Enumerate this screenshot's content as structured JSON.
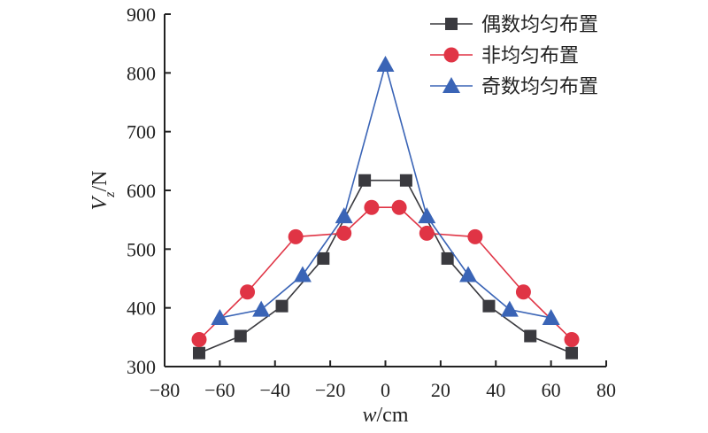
{
  "chart_data": {
    "type": "line",
    "xlabel": {
      "var": "w",
      "unit": "/cm"
    },
    "ylabel": {
      "var": "V",
      "sub": "z",
      "unit": "/N"
    },
    "xlim": [
      -80,
      80
    ],
    "ylim": [
      300,
      900
    ],
    "xticks": [
      -80,
      -60,
      -40,
      -20,
      0,
      20,
      40,
      60,
      80
    ],
    "yticks": [
      300,
      400,
      500,
      600,
      700,
      800,
      900
    ],
    "xtick_labels": [
      "−80",
      "−60",
      "−40",
      "−20",
      "0",
      "20",
      "40",
      "60",
      "80"
    ],
    "ytick_labels": [
      "300",
      "400",
      "500",
      "600",
      "700",
      "800",
      "900"
    ],
    "grid": false,
    "legend_position": "top-right",
    "series": [
      {
        "name": "偶数均匀布置",
        "marker": "square",
        "color": "#3a3a3f",
        "x": [
          -67.5,
          -52.5,
          -37.5,
          -22.5,
          -7.5,
          7.5,
          22.5,
          37.5,
          52.5,
          67.5
        ],
        "y": [
          323,
          352,
          403,
          484,
          617,
          617,
          484,
          403,
          352,
          323
        ]
      },
      {
        "name": "非均匀布置",
        "marker": "circle",
        "color": "#e03445",
        "x": [
          -67.5,
          -50,
          -32.5,
          -15,
          -5,
          5,
          15,
          32.5,
          50,
          67.5
        ],
        "y": [
          346,
          427,
          521,
          527,
          571,
          571,
          527,
          521,
          427,
          346
        ]
      },
      {
        "name": "奇数均匀布置",
        "marker": "triangle",
        "color": "#3a64b6",
        "x": [
          -60,
          -45,
          -30,
          -15,
          0,
          15,
          30,
          45,
          60
        ],
        "y": [
          383,
          397,
          456,
          556,
          814,
          556,
          456,
          397,
          383
        ]
      }
    ]
  }
}
